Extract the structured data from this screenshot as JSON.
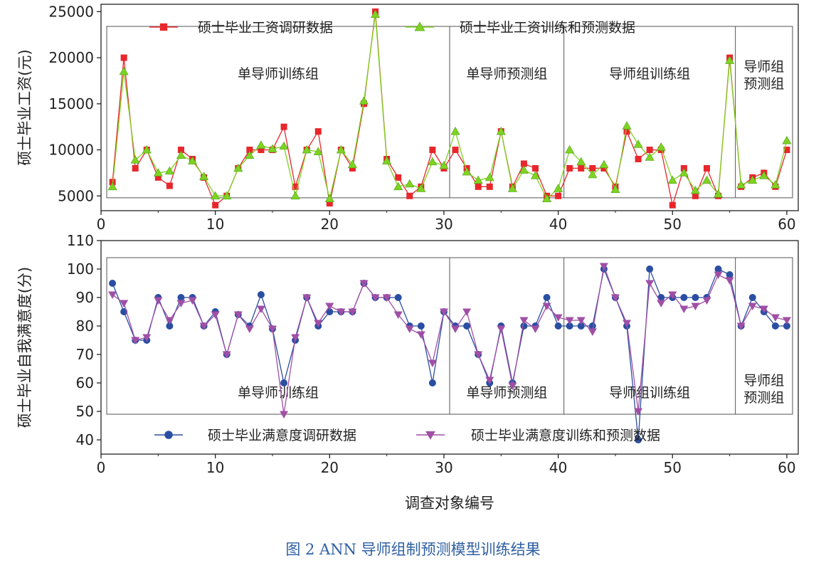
{
  "figure_caption": "图 2 ANN 导师组制预测模型训练结果",
  "colors": {
    "red": "#e8262b",
    "green": "#7ed321",
    "greenStroke": "#4da11a",
    "blue": "#2a4ea2",
    "purple": "#a04fa5",
    "axis": "#222222",
    "caption": "#2e5fa3"
  },
  "chart_data": [
    {
      "type": "line",
      "ylabel": "硕士毕业工资(元)",
      "xlabel": "",
      "xlim": [
        0,
        61
      ],
      "ylim": [
        3400,
        25800
      ],
      "xticks": [
        0,
        10,
        20,
        30,
        40,
        50,
        60
      ],
      "yticks": [
        5000,
        10000,
        15000,
        20000,
        25000
      ],
      "x": [
        1,
        2,
        3,
        4,
        5,
        6,
        7,
        8,
        9,
        10,
        11,
        12,
        13,
        14,
        15,
        16,
        17,
        18,
        19,
        20,
        21,
        22,
        23,
        24,
        25,
        26,
        27,
        28,
        29,
        30,
        31,
        32,
        33,
        34,
        35,
        36,
        37,
        38,
        39,
        40,
        41,
        42,
        43,
        44,
        45,
        46,
        47,
        48,
        49,
        50,
        51,
        52,
        53,
        54,
        55,
        56,
        57,
        58,
        59,
        60
      ],
      "series": [
        {
          "name": "硕士毕业工资调研数据",
          "marker": "square",
          "color": "#e8262b",
          "values": [
            6500,
            20000,
            8000,
            10000,
            7000,
            6100,
            10000,
            9000,
            7000,
            4000,
            5000,
            8000,
            10000,
            10000,
            10000,
            12500,
            6000,
            10000,
            12000,
            4200,
            10000,
            8000,
            15000,
            25000,
            9000,
            7000,
            5000,
            6000,
            10000,
            8000,
            10000,
            8000,
            6000,
            6000,
            12000,
            6000,
            8500,
            8000,
            5000,
            5000,
            8000,
            8000,
            8000,
            8000,
            6000,
            12000,
            9000,
            10000,
            10000,
            4000,
            8000,
            5000,
            8000,
            5000,
            20000,
            6000,
            7000,
            7500,
            6000,
            10000
          ]
        },
        {
          "name": "硕士毕业工资训练和预测数据",
          "marker": "triangle-up",
          "color": "#7ed321",
          "values": [
            6000,
            18500,
            8900,
            10000,
            7500,
            7700,
            9400,
            8800,
            7100,
            5000,
            5000,
            8000,
            9400,
            10500,
            10100,
            10400,
            5000,
            10000,
            9800,
            4700,
            10000,
            8400,
            15300,
            24700,
            8800,
            6000,
            6300,
            5800,
            8700,
            8300,
            12000,
            7600,
            6700,
            7000,
            12000,
            5800,
            7800,
            7200,
            4700,
            5800,
            10000,
            8700,
            7300,
            8400,
            5700,
            12600,
            10600,
            9200,
            10300,
            6700,
            7500,
            5600,
            6700,
            5200,
            19700,
            6200,
            6700,
            7200,
            6200,
            11000
          ]
        }
      ],
      "group_labels": [
        "单导师训练组",
        "单导师预测组",
        "导师组训练组",
        "导师组\n预测组"
      ],
      "group_boundaries": [
        30.5,
        40.5,
        55.5
      ],
      "group_box": {
        "x": [
          0.5,
          60.5
        ],
        "y": [
          4800,
          23400
        ]
      }
    },
    {
      "type": "line",
      "ylabel": "硕士毕业自我满意度(分)",
      "xlabel": "调查对象编号",
      "xlim": [
        0,
        61
      ],
      "ylim": [
        35,
        110
      ],
      "xticks": [
        0,
        10,
        20,
        30,
        40,
        50,
        60
      ],
      "yticks": [
        40,
        50,
        60,
        70,
        80,
        90,
        100,
        110
      ],
      "x": [
        1,
        2,
        3,
        4,
        5,
        6,
        7,
        8,
        9,
        10,
        11,
        12,
        13,
        14,
        15,
        16,
        17,
        18,
        19,
        20,
        21,
        22,
        23,
        24,
        25,
        26,
        27,
        28,
        29,
        30,
        31,
        32,
        33,
        34,
        35,
        36,
        37,
        38,
        39,
        40,
        41,
        42,
        43,
        44,
        45,
        46,
        47,
        48,
        49,
        50,
        51,
        52,
        53,
        54,
        55,
        56,
        57,
        58,
        59,
        60
      ],
      "series": [
        {
          "name": "硕士毕业满意度调研数据",
          "marker": "circle",
          "color": "#2a4ea2",
          "values": [
            95,
            85,
            75,
            75,
            90,
            80,
            90,
            90,
            80,
            85,
            70,
            84,
            80,
            91,
            79,
            60,
            75,
            90,
            80,
            85,
            85,
            85,
            95,
            90,
            90,
            90,
            80,
            80,
            60,
            85,
            80,
            80,
            70,
            60,
            80,
            60,
            80,
            80,
            90,
            80,
            80,
            80,
            80,
            100,
            90,
            80,
            40,
            100,
            90,
            90,
            90,
            90,
            90,
            100,
            98,
            80,
            90,
            85,
            80,
            80
          ]
        },
        {
          "name": "硕士毕业满意度训练和预测数据",
          "marker": "triangle-down",
          "color": "#a04fa5",
          "values": [
            91,
            88,
            75,
            76,
            89,
            82,
            88,
            89,
            80,
            84,
            70,
            84,
            79,
            86,
            79,
            49,
            76,
            90,
            81,
            87,
            85,
            85,
            95,
            90,
            90,
            84,
            79,
            77,
            67,
            85,
            79,
            85,
            70,
            61,
            79,
            59,
            82,
            79,
            87,
            83,
            82,
            82,
            78,
            101,
            90,
            81,
            50,
            95,
            88,
            91,
            86,
            87,
            89,
            98,
            96,
            80,
            87,
            86,
            83,
            82
          ]
        }
      ],
      "group_labels": [
        "单导师训练组",
        "单导师预测组",
        "导师组训练组",
        "导师组\n预测组"
      ],
      "group_boundaries": [
        30.5,
        40.5,
        55.5
      ],
      "group_box": {
        "x": [
          0.5,
          60.5
        ],
        "y": [
          49,
          104
        ]
      }
    }
  ]
}
